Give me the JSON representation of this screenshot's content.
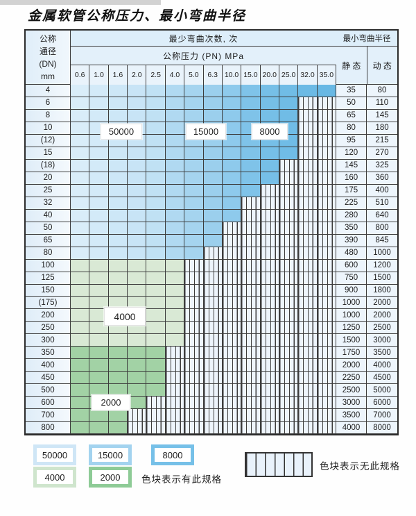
{
  "page": {
    "title": "金属软管公称压力、最小弯曲半径"
  },
  "table": {
    "header": {
      "dn_lines": [
        "公称",
        "通径",
        "(DN)",
        "mm"
      ],
      "cycles_header": "最少弯曲次数, 次",
      "pressure_header": "公称压力 (PN) MPa",
      "radius_header": "最小弯曲半径",
      "static_label": "静 态",
      "dynamic_label": "动 态"
    },
    "columns": [
      "0.6",
      "1.0",
      "1.6",
      "2.0",
      "2.5",
      "4.0",
      "5.0",
      "6.3",
      "10.0",
      "15.0",
      "20.0",
      "25.0",
      "32.0",
      "35.0"
    ],
    "rows": [
      {
        "dn": "4",
        "last": "35.0",
        "palette": "blue",
        "static": "35",
        "dynamic": "80"
      },
      {
        "dn": "6",
        "last": "25.0",
        "palette": "blue",
        "static": "50",
        "dynamic": "110"
      },
      {
        "dn": "8",
        "last": "25.0",
        "palette": "blue",
        "static": "65",
        "dynamic": "145"
      },
      {
        "dn": "10",
        "last": "25.0",
        "palette": "blue",
        "static": "80",
        "dynamic": "180"
      },
      {
        "dn": "(12)",
        "last": "25.0",
        "palette": "blue",
        "static": "95",
        "dynamic": "215"
      },
      {
        "dn": "15",
        "last": "25.0",
        "palette": "blue",
        "static": "120",
        "dynamic": "270"
      },
      {
        "dn": "(18)",
        "last": "20.0",
        "palette": "blue",
        "static": "145",
        "dynamic": "325"
      },
      {
        "dn": "20",
        "last": "20.0",
        "palette": "blue",
        "static": "160",
        "dynamic": "360"
      },
      {
        "dn": "25",
        "last": "15.0",
        "palette": "blue",
        "static": "175",
        "dynamic": "400"
      },
      {
        "dn": "32",
        "last": "10.0",
        "palette": "blue",
        "static": "225",
        "dynamic": "510"
      },
      {
        "dn": "40",
        "last": "10.0",
        "palette": "blue",
        "static": "280",
        "dynamic": "640"
      },
      {
        "dn": "50",
        "last": "6.3",
        "palette": "blue",
        "static": "350",
        "dynamic": "800"
      },
      {
        "dn": "65",
        "last": "6.3",
        "palette": "blue",
        "static": "390",
        "dynamic": "845"
      },
      {
        "dn": "80",
        "last": "5.0",
        "palette": "blue",
        "static": "480",
        "dynamic": "1000"
      },
      {
        "dn": "100",
        "last": "4.0",
        "palette": "green-light",
        "static": "600",
        "dynamic": "1200"
      },
      {
        "dn": "125",
        "last": "4.0",
        "palette": "green-light",
        "static": "750",
        "dynamic": "1500"
      },
      {
        "dn": "150",
        "last": "4.0",
        "palette": "green-light",
        "static": "900",
        "dynamic": "1800"
      },
      {
        "dn": "(175)",
        "last": "4.0",
        "palette": "green-light",
        "static": "1000",
        "dynamic": "2000"
      },
      {
        "dn": "200",
        "last": "4.0",
        "palette": "green-light",
        "static": "1000",
        "dynamic": "2000"
      },
      {
        "dn": "250",
        "last": "4.0",
        "palette": "green-light",
        "static": "1250",
        "dynamic": "2500"
      },
      {
        "dn": "300",
        "last": "4.0",
        "palette": "green-light",
        "static": "1500",
        "dynamic": "3000"
      },
      {
        "dn": "350",
        "last": "2.5",
        "palette": "green-dark",
        "static": "1750",
        "dynamic": "3500"
      },
      {
        "dn": "400",
        "last": "2.5",
        "palette": "green-dark",
        "static": "2000",
        "dynamic": "4000"
      },
      {
        "dn": "450",
        "last": "2.5",
        "palette": "green-dark",
        "static": "2250",
        "dynamic": "4500"
      },
      {
        "dn": "500",
        "last": "2.5",
        "palette": "green-dark",
        "static": "2500",
        "dynamic": "5000"
      },
      {
        "dn": "600",
        "last": "2.0",
        "palette": "green-dark",
        "static": "3000",
        "dynamic": "6000"
      },
      {
        "dn": "700",
        "last": "1.6",
        "palette": "green-dark",
        "static": "3500",
        "dynamic": "7000"
      },
      {
        "dn": "800",
        "last": "1.6",
        "palette": "green-dark",
        "static": "4000",
        "dynamic": "8000"
      }
    ],
    "overlays": [
      {
        "text": "50000"
      },
      {
        "text": "15000"
      },
      {
        "text": "8000"
      },
      {
        "text": "4000"
      },
      {
        "text": "2000"
      }
    ]
  },
  "legend": {
    "blocks": [
      {
        "label": "50000",
        "color": "#cfe6f6"
      },
      {
        "label": "15000",
        "color": "#a3d3ef"
      },
      {
        "label": "8000",
        "color": "#76c0e8"
      },
      {
        "label": "4000",
        "color": "#cfe5cd"
      },
      {
        "label": "2000",
        "color": "#8ecb96"
      }
    ],
    "has_spec_text": "色块表示有此规格",
    "no_spec_text": "色块表示无此规格"
  },
  "colors": {
    "border": "#3c3c3c",
    "blue_columns": [
      "#d9edf9",
      "#d3eaf8",
      "#cde7f7",
      "#c8e4f6",
      "#c0e1f4",
      "#b0d9f1",
      "#a5d4ef",
      "#9bcfed",
      "#8ecaec",
      "#7fc3e9",
      "#76bfe7",
      "#70bce6",
      "#6cbae5",
      "#68b8e4"
    ],
    "green_light": "#d9e9d5",
    "green_dark": "#a2d2a5"
  }
}
